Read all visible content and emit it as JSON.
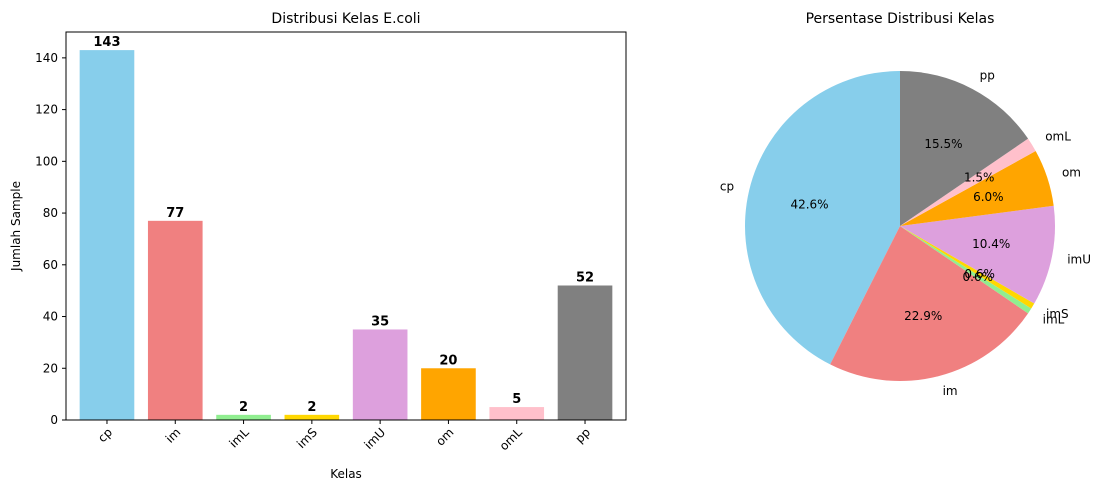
{
  "chart_data": [
    {
      "type": "bar",
      "title": "Distribusi Kelas E.coli",
      "xlabel": "Kelas",
      "ylabel": "Jumlah Sample",
      "categories": [
        "cp",
        "im",
        "imL",
        "imS",
        "imU",
        "om",
        "omL",
        "pp"
      ],
      "values": [
        143,
        77,
        2,
        2,
        35,
        20,
        5,
        52
      ],
      "data_labels": [
        "143",
        "77",
        "2",
        "2",
        "35",
        "20",
        "5",
        "52"
      ],
      "colors": [
        "#87ceeb",
        "#f08080",
        "#90ee90",
        "#ffd700",
        "#dda0dd",
        "#ffa500",
        "#ffc0cb",
        "#808080"
      ],
      "ylim": [
        0,
        150
      ],
      "yticks": [
        0,
        20,
        40,
        60,
        80,
        100,
        120,
        140
      ],
      "xtick_rotation": 45,
      "grid": false,
      "legend": "none"
    },
    {
      "type": "pie",
      "title": "Persentase Distribusi Kelas",
      "labels": [
        "cp",
        "im",
        "imL",
        "imS",
        "imU",
        "om",
        "omL",
        "pp"
      ],
      "values": [
        143,
        77,
        2,
        2,
        35,
        20,
        5,
        52
      ],
      "percent_labels": [
        "42.6%",
        "22.9%",
        "0.6%",
        "0.6%",
        "10.4%",
        "6.0%",
        "1.5%",
        "15.5%"
      ],
      "colors": [
        "#87ceeb",
        "#f08080",
        "#90ee90",
        "#ffd700",
        "#dda0dd",
        "#ffa500",
        "#ffc0cb",
        "#808080"
      ],
      "start_angle": 90,
      "direction": "counterclockwise",
      "legend": "none"
    }
  ]
}
